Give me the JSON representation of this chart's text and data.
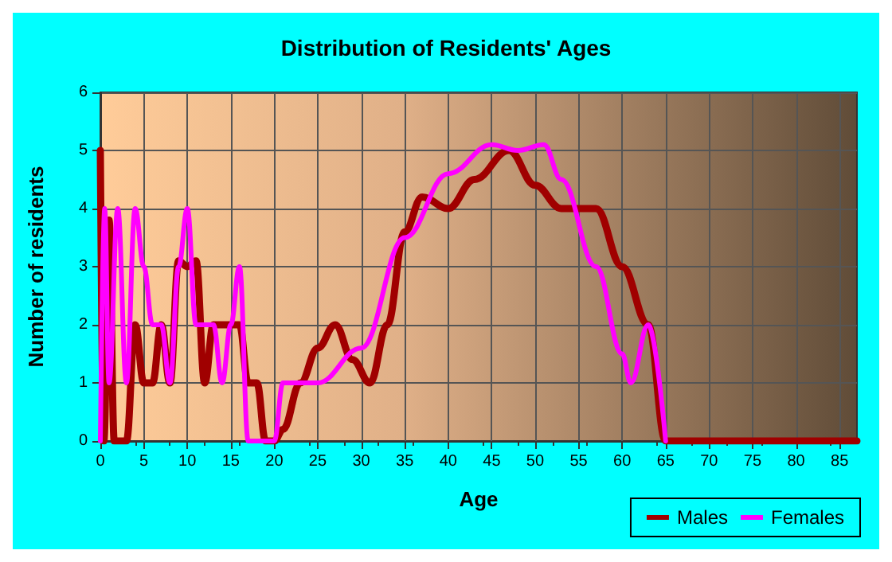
{
  "chart_data": {
    "type": "line",
    "title": "Distribution of Residents' Ages",
    "xlabel": "Age",
    "ylabel": "Number of residents",
    "xlim": [
      0,
      87
    ],
    "xticks": [
      0,
      5,
      10,
      15,
      20,
      25,
      30,
      35,
      40,
      45,
      50,
      55,
      60,
      65,
      70,
      75,
      80,
      85
    ],
    "ylim": [
      0,
      6
    ],
    "yticks": [
      0,
      1,
      2,
      3,
      4,
      5,
      6
    ],
    "grid": true,
    "legend": "bottom right",
    "marker": "none",
    "line_style": "solid",
    "series": [
      {
        "name": "Males",
        "color": "#a00000",
        "x": [
          0,
          0.4,
          1,
          1.6,
          2,
          3,
          4,
          5,
          6,
          7,
          8,
          9,
          10,
          11,
          12,
          13,
          14,
          15,
          16,
          17,
          18,
          19,
          20,
          21,
          23,
          25,
          27,
          29,
          31,
          33,
          35,
          37,
          40,
          43,
          47,
          50,
          53,
          57,
          60,
          63,
          65,
          66,
          87
        ],
        "values": [
          5,
          0,
          3.8,
          0,
          0,
          0,
          2,
          1,
          1,
          2,
          1,
          3.1,
          3,
          3.1,
          1,
          2,
          2,
          2,
          2,
          1,
          1,
          0,
          0,
          0.2,
          1,
          1.6,
          2,
          1.4,
          1,
          2,
          3.6,
          4.2,
          4,
          4.5,
          5,
          4.4,
          4,
          4,
          3,
          2,
          0,
          0,
          0
        ]
      },
      {
        "name": "Females",
        "color": "#ff00ff",
        "x": [
          0,
          0.5,
          1,
          2,
          3,
          4,
          5,
          6,
          7,
          8,
          9,
          10,
          11,
          12,
          13,
          14,
          15,
          16,
          17,
          19,
          20,
          21,
          25,
          30,
          35,
          40,
          45,
          48,
          51,
          53,
          57,
          60,
          61,
          63,
          65
        ],
        "values": [
          0,
          4,
          1,
          4,
          1,
          4,
          3,
          2,
          2,
          1,
          3,
          4,
          2,
          2,
          2,
          1,
          2,
          3,
          0,
          0,
          0,
          1,
          1,
          1.6,
          3.5,
          4.6,
          5.1,
          5,
          5.1,
          4.5,
          3,
          1.5,
          1,
          2,
          0
        ]
      }
    ]
  }
}
